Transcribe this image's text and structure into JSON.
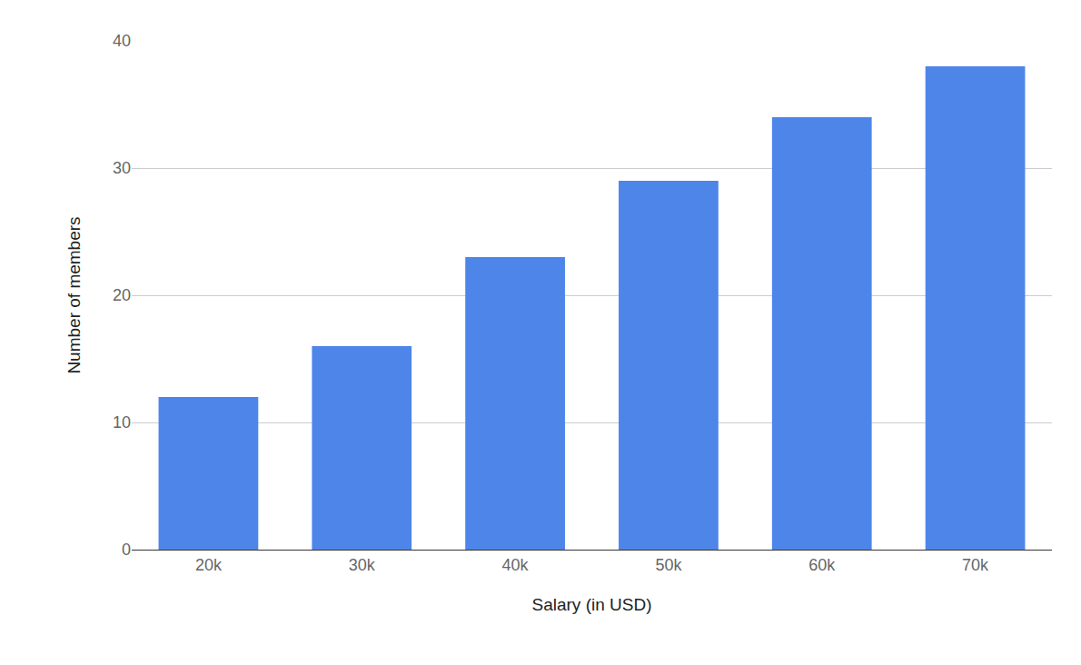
{
  "chart_data": {
    "type": "bar",
    "x_label": "Salary (in USD)",
    "y_label": "Number of members",
    "categories": [
      "20k",
      "30k",
      "40k",
      "50k",
      "60k",
      "70k"
    ],
    "values": [
      12,
      16,
      23,
      29,
      34,
      38
    ],
    "color": "#4e85e9",
    "ylim": [
      0,
      40
    ],
    "yticks": [
      0,
      10,
      20,
      30,
      40
    ],
    "grid": true
  }
}
